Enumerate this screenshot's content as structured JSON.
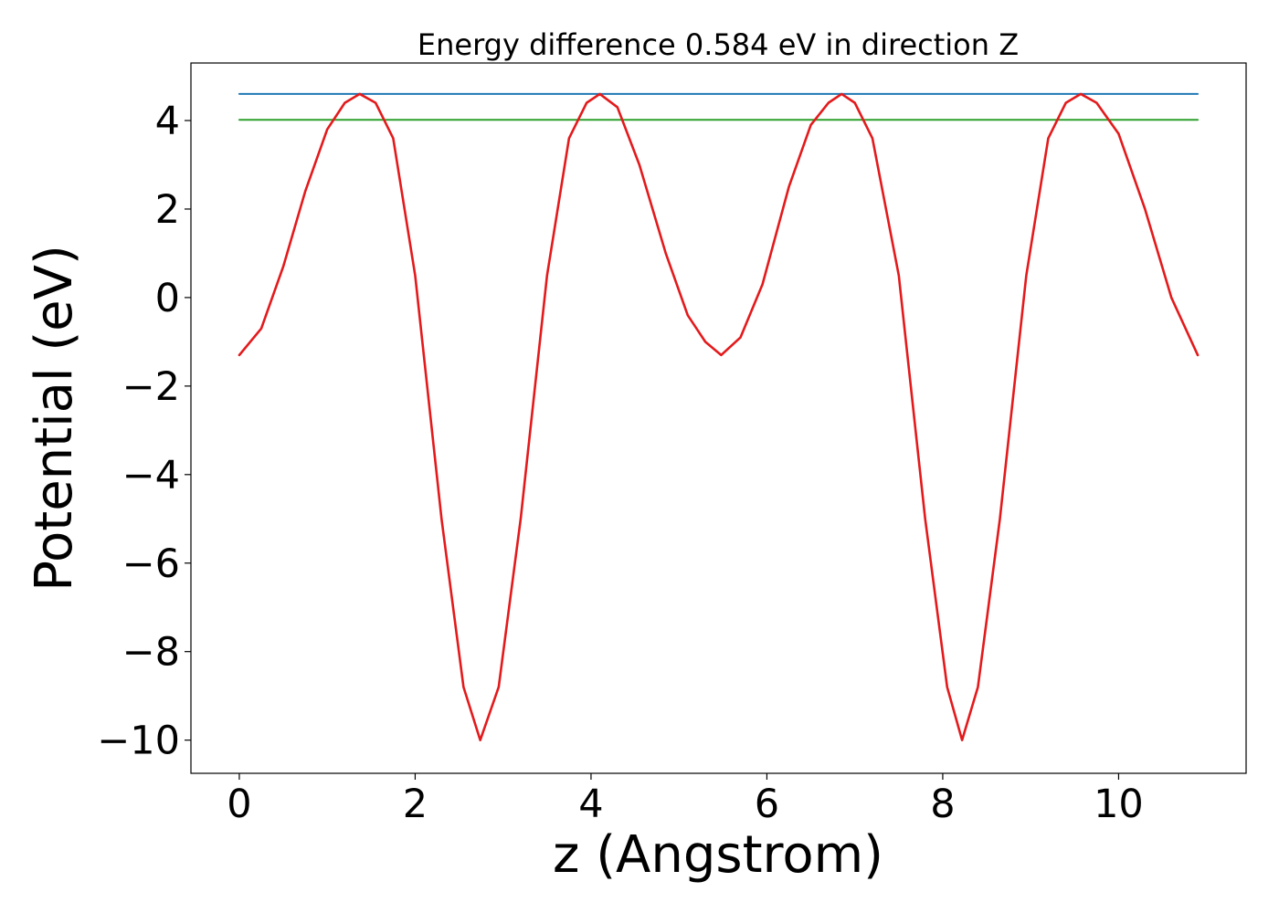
{
  "chart_data": {
    "type": "line",
    "title": "Energy difference 0.584 eV in direction Z",
    "xlabel": "z (Angstrom)",
    "ylabel": "Potential (eV)",
    "xlim": [
      -0.55,
      11.45
    ],
    "ylim": [
      -10.75,
      5.3
    ],
    "xticks": [
      0,
      2,
      4,
      6,
      8,
      10
    ],
    "xtick_labels": [
      "0",
      "2",
      "4",
      "6",
      "8",
      "10"
    ],
    "yticks": [
      4,
      2,
      0,
      -2,
      -4,
      -6,
      -8,
      -10
    ],
    "ytick_labels": [
      "4",
      "2",
      "0",
      "−2",
      "−4",
      "−6",
      "−8",
      "−10"
    ],
    "grid": false,
    "legend": "none",
    "series": [
      {
        "role": "potential",
        "color": "#e31a1c",
        "x": [
          0.0,
          0.25,
          0.5,
          0.75,
          1.0,
          1.2,
          1.37,
          1.55,
          1.75,
          2.0,
          2.3,
          2.55,
          2.74,
          2.95,
          3.2,
          3.5,
          3.75,
          3.95,
          4.1,
          4.3,
          4.55,
          4.85,
          5.1,
          5.3,
          5.48,
          5.7,
          5.95,
          6.25,
          6.5,
          6.7,
          6.85,
          7.0,
          7.2,
          7.5,
          7.8,
          8.05,
          8.22,
          8.4,
          8.65,
          8.95,
          9.2,
          9.4,
          9.57,
          9.75,
          10.0,
          10.3,
          10.6,
          10.9
        ],
        "y": [
          -1.3,
          -0.7,
          0.7,
          2.4,
          3.8,
          4.4,
          4.6,
          4.4,
          3.6,
          0.5,
          -5.0,
          -8.8,
          -10.0,
          -8.8,
          -5.0,
          0.5,
          3.6,
          4.4,
          4.6,
          4.3,
          3.0,
          1.0,
          -0.4,
          -1.0,
          -1.3,
          -0.9,
          0.3,
          2.5,
          3.9,
          4.4,
          4.6,
          4.4,
          3.6,
          0.5,
          -5.0,
          -8.8,
          -10.0,
          -8.8,
          -5.0,
          0.5,
          3.6,
          4.4,
          4.6,
          4.4,
          3.7,
          2.0,
          0.0,
          -1.3
        ]
      },
      {
        "role": "max-level",
        "color": "#1f77b4",
        "x": [
          0.0,
          10.9
        ],
        "y": [
          4.6,
          4.6
        ]
      },
      {
        "role": "mean-level",
        "color": "#2ca02c",
        "x": [
          0.0,
          10.9
        ],
        "y": [
          4.016,
          4.016
        ]
      }
    ]
  }
}
